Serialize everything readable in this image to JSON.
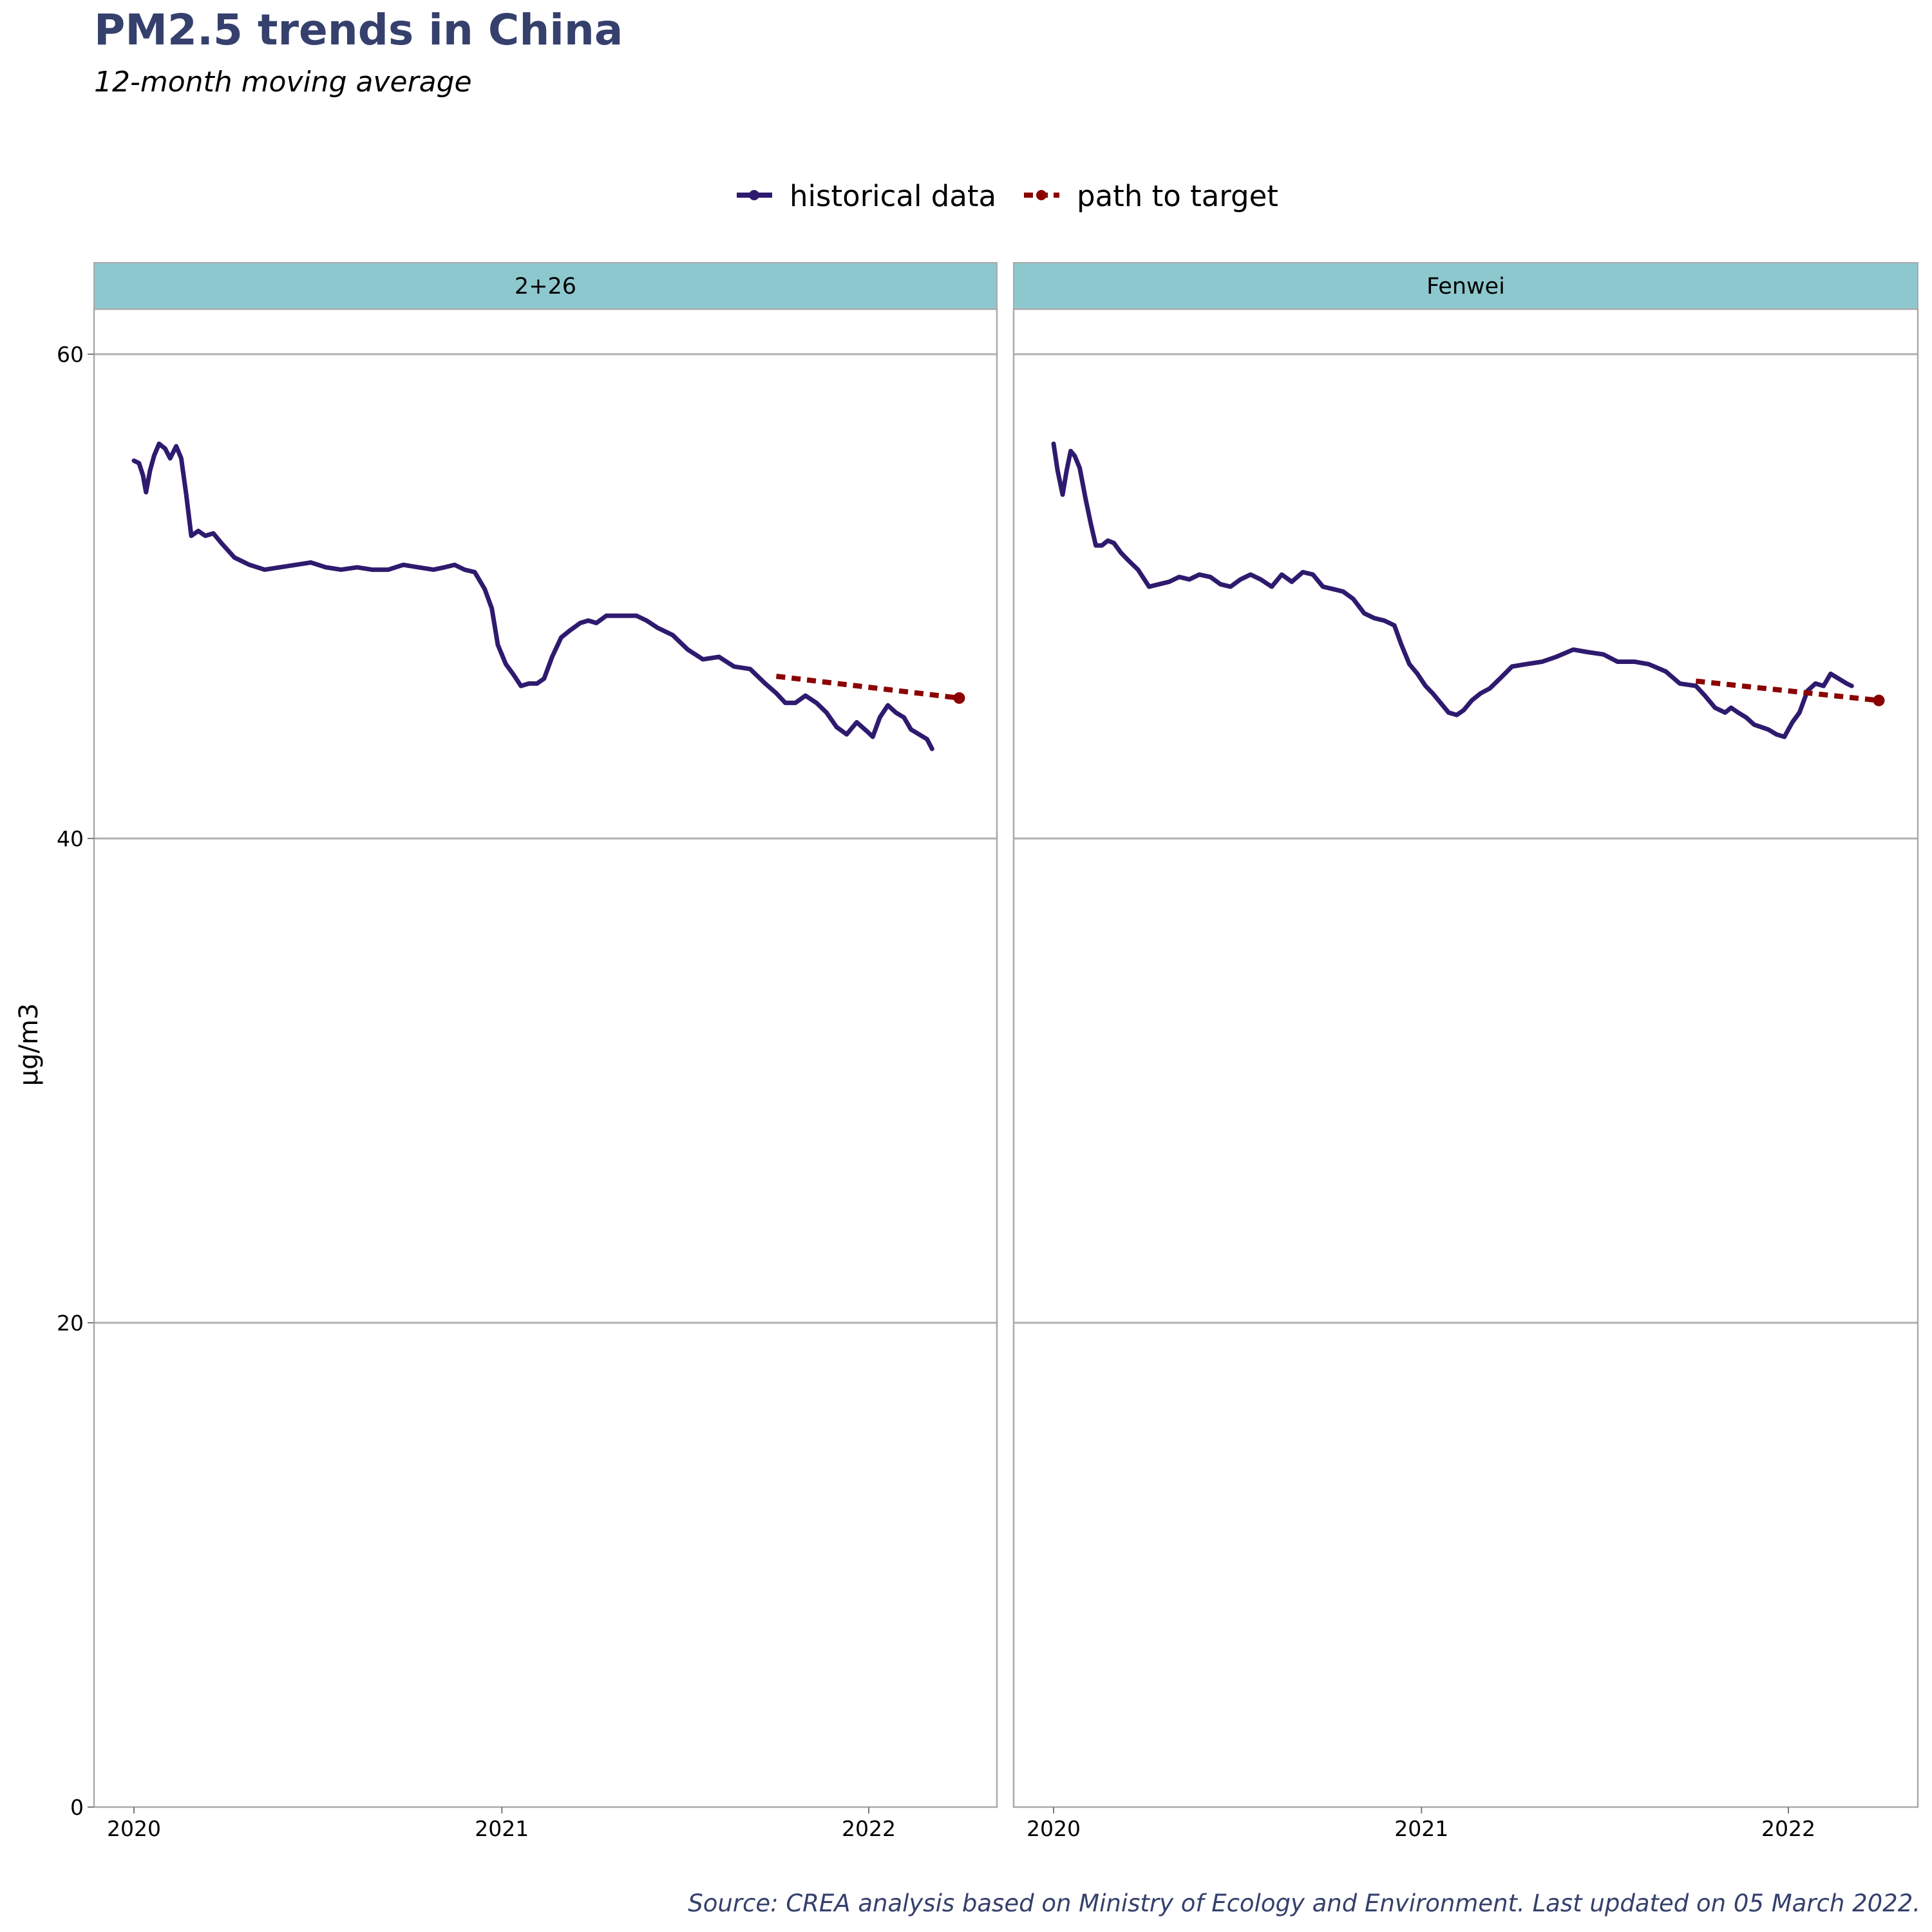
{
  "chart": {
    "title": "PM2.5 trends in China",
    "subtitle": "12-month moving average",
    "caption": "Source: CREA analysis based on Ministry of Ecology and Environment. Last updated on 05 March 2022.",
    "ylabel": "µg/m3",
    "legend": [
      "historical data",
      "path to target"
    ]
  },
  "chart_data": {
    "type": "line",
    "title": "PM2.5 trends in China",
    "subtitle": "12-month moving average",
    "xlabel": "",
    "ylabel": "µg/m3",
    "x_ticks": [
      "2020",
      "2021",
      "2022"
    ],
    "y_ticks": [
      0,
      20,
      40,
      60
    ],
    "ylim": [
      0,
      62
    ],
    "xlim": [
      "2019-11-25",
      "2022-05-08"
    ],
    "grid": "horizontal major",
    "legend_position": "top",
    "colors": {
      "historical data": "#2e1a6e",
      "path to target": "#8b0000",
      "strip": "#8ec8cf"
    },
    "panels": [
      {
        "name": "2+26",
        "series": [
          {
            "name": "historical data",
            "style": "solid",
            "x": [
              "2020-01-01",
              "2020-01-06",
              "2020-01-10",
              "2020-01-13",
              "2020-01-17",
              "2020-01-21",
              "2020-01-26",
              "2020-02-01",
              "2020-02-06",
              "2020-02-12",
              "2020-02-17",
              "2020-02-22",
              "2020-02-27",
              "2020-03-05",
              "2020-03-12",
              "2020-03-20",
              "2020-03-28",
              "2020-04-10",
              "2020-04-25",
              "2020-05-10",
              "2020-05-25",
              "2020-06-10",
              "2020-06-25",
              "2020-07-10",
              "2020-07-25",
              "2020-08-10",
              "2020-08-25",
              "2020-09-10",
              "2020-09-25",
              "2020-10-10",
              "2020-10-25",
              "2020-11-05",
              "2020-11-15",
              "2020-11-25",
              "2020-12-05",
              "2020-12-15",
              "2020-12-22",
              "2020-12-28",
              "2021-01-05",
              "2021-01-12",
              "2021-01-20",
              "2021-01-28",
              "2021-02-05",
              "2021-02-12",
              "2021-02-20",
              "2021-03-01",
              "2021-03-10",
              "2021-03-20",
              "2021-03-28",
              "2021-04-05",
              "2021-04-15",
              "2021-04-25",
              "2021-05-05",
              "2021-05-15",
              "2021-05-25",
              "2021-06-05",
              "2021-06-20",
              "2021-07-05",
              "2021-07-20",
              "2021-08-05",
              "2021-08-20",
              "2021-09-05",
              "2021-09-20",
              "2021-10-01",
              "2021-10-10",
              "2021-10-20",
              "2021-10-30",
              "2021-11-10",
              "2021-11-20",
              "2021-11-30",
              "2021-12-10",
              "2021-12-20",
              "2021-12-31",
              "2022-01-05",
              "2022-01-12",
              "2022-01-20",
              "2022-01-28",
              "2022-02-05",
              "2022-02-12",
              "2022-02-20",
              "2022-02-28",
              "2022-03-05"
            ],
            "y": [
              55.6,
              55.5,
              55.0,
              54.3,
              55.2,
              55.8,
              56.3,
              56.1,
              55.7,
              56.2,
              55.7,
              54.2,
              52.5,
              52.7,
              52.5,
              52.6,
              52.2,
              51.6,
              51.3,
              51.1,
              51.2,
              51.3,
              51.4,
              51.2,
              51.1,
              51.2,
              51.1,
              51.1,
              51.3,
              51.2,
              51.1,
              51.2,
              51.3,
              51.1,
              51.0,
              50.3,
              49.5,
              48.0,
              47.2,
              46.8,
              46.3,
              46.4,
              46.4,
              46.6,
              47.5,
              48.3,
              48.6,
              48.9,
              49.0,
              48.9,
              49.2,
              49.2,
              49.2,
              49.2,
              49.0,
              48.7,
              48.4,
              47.8,
              47.4,
              47.5,
              47.1,
              47.0,
              46.4,
              46.0,
              45.6,
              45.6,
              45.9,
              45.6,
              45.2,
              44.6,
              44.3,
              44.8,
              44.4,
              44.2,
              45.0,
              45.5,
              45.2,
              45.0,
              44.5,
              44.3,
              44.1,
              43.7
            ]
          },
          {
            "name": "path to target",
            "style": "dashed",
            "x": [
              "2021-10-01",
              "2022-04-01"
            ],
            "y": [
              46.7,
              45.8
            ]
          }
        ]
      },
      {
        "name": "Fenwei",
        "series": [
          {
            "name": "historical data",
            "style": "solid",
            "x": [
              "2020-01-01",
              "2020-01-05",
              "2020-01-10",
              "2020-01-14",
              "2020-01-18",
              "2020-01-22",
              "2020-01-27",
              "2020-02-02",
              "2020-02-07",
              "2020-02-12",
              "2020-02-18",
              "2020-02-24",
              "2020-03-01",
              "2020-03-08",
              "2020-03-15",
              "2020-03-25",
              "2020-04-05",
              "2020-04-15",
              "2020-04-25",
              "2020-05-05",
              "2020-05-15",
              "2020-05-25",
              "2020-06-05",
              "2020-06-15",
              "2020-06-25",
              "2020-07-05",
              "2020-07-15",
              "2020-07-25",
              "2020-08-05",
              "2020-08-15",
              "2020-08-25",
              "2020-09-05",
              "2020-09-15",
              "2020-09-25",
              "2020-10-05",
              "2020-10-15",
              "2020-10-25",
              "2020-11-05",
              "2020-11-15",
              "2020-11-25",
              "2020-12-05",
              "2020-12-12",
              "2020-12-20",
              "2020-12-28",
              "2021-01-05",
              "2021-01-12",
              "2021-01-20",
              "2021-01-28",
              "2021-02-05",
              "2021-02-12",
              "2021-02-20",
              "2021-03-01",
              "2021-03-10",
              "2021-03-20",
              "2021-04-01",
              "2021-04-15",
              "2021-05-01",
              "2021-05-15",
              "2021-06-01",
              "2021-06-15",
              "2021-07-01",
              "2021-07-15",
              "2021-08-01",
              "2021-08-15",
              "2021-09-01",
              "2021-09-15",
              "2021-10-01",
              "2021-10-10",
              "2021-10-20",
              "2021-10-30",
              "2021-11-05",
              "2021-11-12",
              "2021-11-20",
              "2021-11-28",
              "2021-12-05",
              "2021-12-12",
              "2021-12-20",
              "2021-12-28",
              "2022-01-05",
              "2022-01-12",
              "2022-01-20",
              "2022-01-28",
              "2022-02-05",
              "2022-02-12",
              "2022-02-20",
              "2022-02-28",
              "2022-03-05"
            ],
            "y": [
              56.3,
              55.2,
              54.2,
              55.2,
              56.0,
              55.8,
              55.3,
              54.0,
              53.0,
              52.1,
              52.1,
              52.3,
              52.2,
              51.8,
              51.5,
              51.1,
              50.4,
              50.5,
              50.6,
              50.8,
              50.7,
              50.9,
              50.8,
              50.5,
              50.4,
              50.7,
              50.9,
              50.7,
              50.4,
              50.9,
              50.6,
              51.0,
              50.9,
              50.4,
              50.3,
              50.2,
              49.9,
              49.3,
              49.1,
              49.0,
              48.8,
              48.0,
              47.2,
              46.8,
              46.3,
              46.0,
              45.6,
              45.2,
              45.1,
              45.3,
              45.7,
              46.0,
              46.2,
              46.6,
              47.1,
              47.2,
              47.3,
              47.5,
              47.8,
              47.7,
              47.6,
              47.3,
              47.3,
              47.2,
              46.9,
              46.4,
              46.3,
              45.9,
              45.4,
              45.2,
              45.4,
              45.2,
              45.0,
              44.7,
              44.6,
              44.5,
              44.3,
              44.2,
              44.8,
              45.2,
              46.1,
              46.4,
              46.3,
              46.8,
              46.6,
              46.4,
              46.3
            ]
          },
          {
            "name": "path to target",
            "style": "dashed",
            "x": [
              "2021-10-01",
              "2022-04-01"
            ],
            "y": [
              46.5,
              45.7
            ]
          }
        ]
      }
    ]
  }
}
